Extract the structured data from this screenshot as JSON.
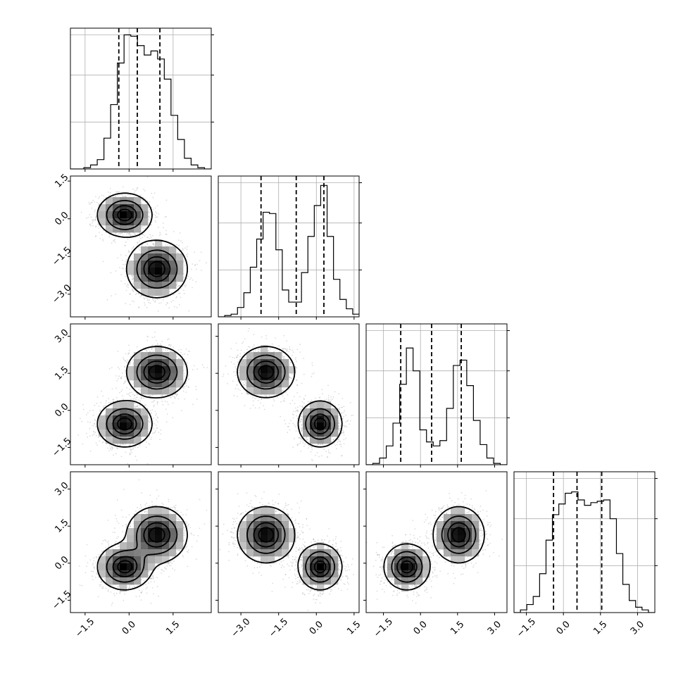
{
  "chart_data": {
    "type": "corner",
    "n_params": 4,
    "labels": [
      "",
      "",
      "",
      ""
    ],
    "grid": true,
    "params": [
      {
        "range": [
          -2.0,
          2.8
        ],
        "ticks": [
          -1.5,
          0.0,
          1.5
        ],
        "tick_labels": [
          "−1.5",
          "0.0",
          "1.5"
        ],
        "quantiles": [
          -0.35,
          0.28,
          1.05
        ],
        "hist_bins": [
          0.0,
          0.0,
          0.01,
          0.03,
          0.07,
          0.23,
          0.48,
          0.79,
          1.0,
          0.99,
          0.92,
          0.85,
          0.88,
          0.82,
          0.67,
          0.4,
          0.22,
          0.08,
          0.03,
          0.01,
          0.0
        ]
      },
      {
        "range": [
          -3.9,
          1.7
        ],
        "ticks": [
          -3.0,
          -1.5,
          0.0,
          1.5
        ],
        "tick_labels": [
          "−3.0",
          "−1.5",
          "0.0",
          "1.5"
        ],
        "quantiles": [
          -2.2,
          -0.8,
          0.3
        ],
        "hist_bins": [
          0.0,
          0.01,
          0.02,
          0.07,
          0.18,
          0.37,
          0.58,
          0.78,
          0.77,
          0.5,
          0.2,
          0.11,
          0.11,
          0.33,
          0.6,
          0.83,
          0.98,
          0.6,
          0.28,
          0.13,
          0.06,
          0.02
        ]
      },
      {
        "range": [
          -2.2,
          3.5
        ],
        "ticks": [
          -1.5,
          0.0,
          1.5,
          3.0
        ],
        "tick_labels": [
          "−1.5",
          "0.0",
          "1.5",
          "3.0"
        ],
        "quantiles": [
          -0.8,
          0.45,
          1.65
        ],
        "hist_bins": [
          0.0,
          0.01,
          0.05,
          0.14,
          0.31,
          0.6,
          0.87,
          0.7,
          0.26,
          0.17,
          0.14,
          0.18,
          0.42,
          0.74,
          0.78,
          0.59,
          0.33,
          0.15,
          0.05,
          0.01,
          0.0
        ]
      },
      {
        "range": [
          -2.0,
          3.7
        ],
        "ticks": [
          -1.5,
          0.0,
          1.5,
          3.0
        ],
        "tick_labels": [
          "−1.5",
          "0.0",
          "1.5",
          "3.0"
        ],
        "quantiles": [
          -0.4,
          0.55,
          1.55
        ],
        "hist_bins": [
          0.0,
          0.02,
          0.06,
          0.12,
          0.29,
          0.54,
          0.73,
          0.81,
          0.89,
          0.9,
          0.84,
          0.8,
          0.82,
          0.83,
          0.84,
          0.7,
          0.44,
          0.21,
          0.09,
          0.04,
          0.02,
          0.0
        ]
      }
    ],
    "components": [
      {
        "weight": 0.5,
        "means": [
          -0.15,
          0.15,
          -0.55,
          -0.15
        ],
        "sds": [
          0.45,
          0.42,
          0.45,
          0.45
        ]
      },
      {
        "weight": 0.5,
        "means": [
          0.95,
          -2.0,
          1.55,
          1.15
        ],
        "sds": [
          0.5,
          0.55,
          0.5,
          0.55
        ]
      }
    ],
    "contour_levels": [
      0.118,
      0.393,
      0.675,
      0.865
    ],
    "colors": {
      "points": "#9a9a9a",
      "contour": "#000000",
      "density_dark": "#000000",
      "grid": "#b0b0b0"
    }
  }
}
